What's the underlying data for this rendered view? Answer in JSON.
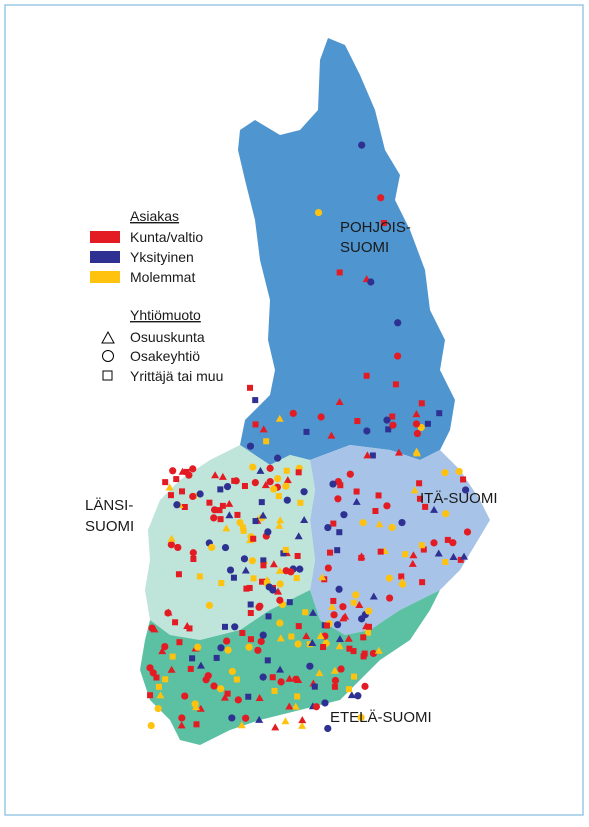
{
  "legend": {
    "customer": {
      "title": "Asiakas",
      "items": [
        "Kunta/valtio",
        "Yksityinen",
        "Molemmat"
      ]
    },
    "company_form": {
      "title": "Yhtiömuoto",
      "items": [
        "Osuuskunta",
        "Osakeyhtiö",
        "Yrittäjä tai muu"
      ]
    }
  },
  "regions": {
    "north": [
      "POHJOIS-",
      "SUOMI"
    ],
    "east": [
      "ITÄ-SUOMI"
    ],
    "west": [
      "LÄNSI-",
      "SUOMI"
    ],
    "south": [
      "ETELÄ-SUOMI"
    ]
  }
}
